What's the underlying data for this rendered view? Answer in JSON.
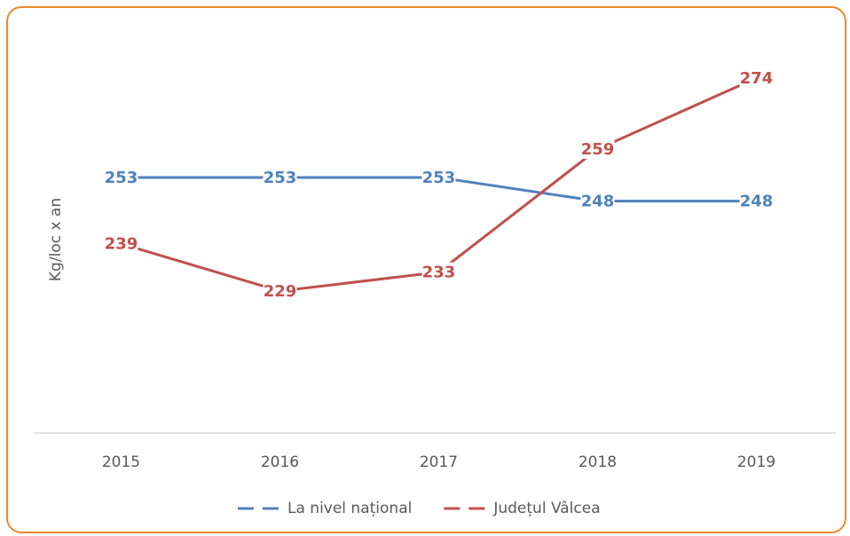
{
  "chart_data": {
    "type": "line",
    "y_label": "Kg/loc x an",
    "categories": [
      "2015",
      "2016",
      "2017",
      "2018",
      "2019"
    ],
    "series": [
      {
        "name": "La nivel național",
        "color": "#4f81bd",
        "values": [
          253,
          253,
          253,
          248,
          248
        ]
      },
      {
        "name": "Județul Vâlcea",
        "color": "#c0504d",
        "values": [
          239,
          229,
          233,
          259,
          274
        ]
      }
    ],
    "ylim": [
      199,
      280
    ]
  }
}
